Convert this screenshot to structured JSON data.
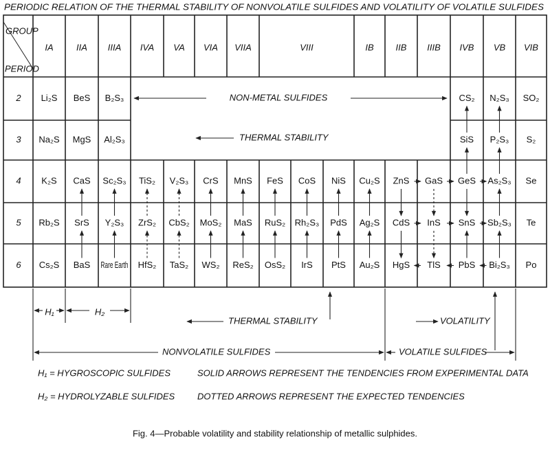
{
  "title": "PERIODIC RELATION OF THE THERMAL STABILITY OF NONVOLATILE SULFIDES AND VOLATILITY OF VOLATILE SULFIDES",
  "table": {
    "corner": {
      "group": "GROUP",
      "period": "PERIOD"
    },
    "groups": [
      "IA",
      "IIA",
      "IIIA",
      "IVA",
      "VA",
      "VIA",
      "VIIA",
      "VIII",
      "IB",
      "IIB",
      "IIIB",
      "IVB",
      "VB",
      "VIB"
    ],
    "periods": [
      "2",
      "3",
      "4",
      "5",
      "6"
    ],
    "rows": [
      [
        "Li₂S",
        "BeS",
        "B₂S₃",
        null,
        null,
        null,
        null,
        null,
        null,
        null,
        null,
        null,
        null,
        "CS₂",
        "N₂S₃",
        "SO₂"
      ],
      [
        "Na₂S",
        "MgS",
        "Al₂S₃",
        null,
        null,
        null,
        null,
        null,
        null,
        null,
        null,
        null,
        null,
        "SiS",
        "P₂S₃",
        "S₂"
      ],
      [
        "K₂S",
        "CaS",
        "Sc₂S₃",
        "TiS₂",
        "V₂S₃",
        "CrS",
        "MnS",
        "FeS",
        "CoS",
        "NiS",
        "Cu₂S",
        "ZnS",
        "GaS",
        "GeS",
        "As₂S₃",
        "Se"
      ],
      [
        "Rb₂S",
        "SrS",
        "Y₂S₃",
        "ZrS₂",
        "CbS₂",
        "MoS₂",
        "MaS",
        "RuS₂",
        "Rh₂S₃",
        "PdS",
        "Ag₂S",
        "CdS",
        "InS",
        "SnS",
        "Sb₂S₃",
        "Te"
      ],
      [
        "Cs₂S",
        "BaS",
        "Rare Earth",
        "HfS₂",
        "TaS₂",
        "WS₂",
        "ReS₂",
        "OsS₂",
        "IrS",
        "PtS",
        "Au₂S",
        "HgS",
        "TlS",
        "PbS",
        "Bi₂S₃",
        "Po"
      ]
    ]
  },
  "annotations": {
    "non_metal": "NON-METAL SULFIDES",
    "thermal_stability_row": "THERMAL STABILITY",
    "h1": "H₁",
    "h2": "H₂",
    "thermal_stability": "THERMAL STABILITY",
    "volatility": "VOLATILITY",
    "nonvolatile": "NONVOLATILE SULFIDES",
    "volatile": "VOLATILE SULFIDES"
  },
  "legend": [
    "H₁ = HYGROSCOPIC SULFIDES",
    "SOLID ARROWS REPRESENT THE TENDENCIES FROM EXPERIMENTAL DATA",
    "H₂ = HYDROLYZABLE SULFIDES",
    "DOTTED ARROWS REPRESENT THE EXPECTED TENDENCIES"
  ],
  "caption": "Fig. 4—Probable volatility and stability relationship of metallic sulphides."
}
